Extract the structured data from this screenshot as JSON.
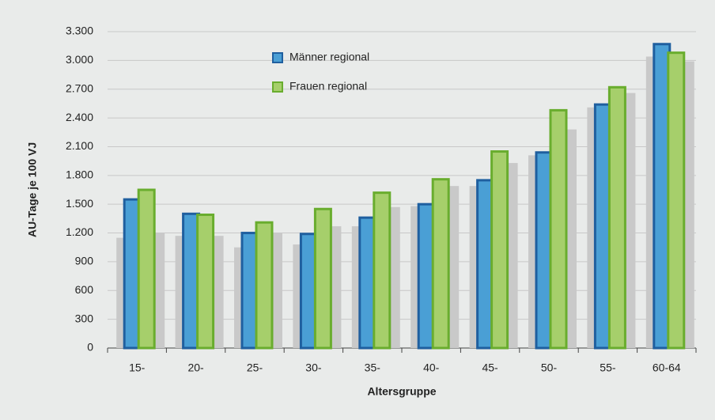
{
  "chart_data": {
    "type": "bar",
    "ylabel": "AU-Tage je 100 VJ",
    "xlabel": "Altersgruppe",
    "categories": [
      "15-",
      "20-",
      "25-",
      "30-",
      "35-",
      "40-",
      "45-",
      "50-",
      "55-",
      "60-64"
    ],
    "series": [
      {
        "color": "#c9c9c9",
        "values": [
          1150,
          1170,
          1050,
          1080,
          1270,
          1480,
          1690,
          2010,
          2510,
          3040
        ]
      },
      {
        "color": "#c9c9c9",
        "values": [
          1200,
          1170,
          1200,
          1270,
          1470,
          1690,
          1930,
          2280,
          2660,
          2990
        ]
      },
      {
        "name": "Männer regional",
        "color": "#4a9fd5",
        "edgecolor": "#1f5f9f",
        "values": [
          1550,
          1400,
          1200,
          1190,
          1360,
          1500,
          1750,
          2040,
          2540,
          3170
        ]
      },
      {
        "name": "Frauen regional",
        "color": "#a6cf6b",
        "edgecolor": "#69ad2e",
        "values": [
          1650,
          1390,
          1310,
          1450,
          1620,
          1760,
          2050,
          2480,
          2720,
          3080
        ]
      }
    ],
    "ylim": [
      0,
      3300
    ],
    "yticks": [
      0,
      300,
      600,
      900,
      {
        "value": 1200,
        "label": "1.200"
      },
      {
        "value": 1500,
        "label": "1.500"
      },
      {
        "value": 1800,
        "label": "1.800"
      },
      {
        "value": 2100,
        "label": "2.100"
      },
      {
        "value": 2400,
        "label": "2.400"
      },
      {
        "value": 2700,
        "label": "2.700"
      },
      {
        "value": 3000,
        "label": "3.000"
      },
      {
        "value": 3300,
        "label": "3.300"
      }
    ],
    "grid": true
  }
}
